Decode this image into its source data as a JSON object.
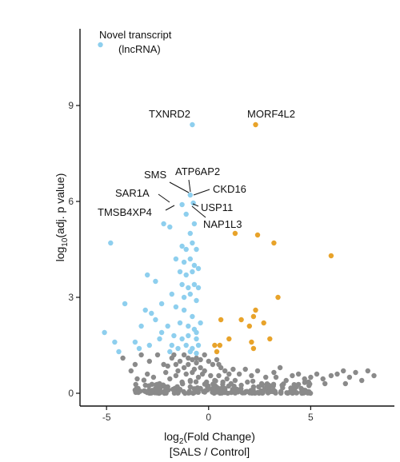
{
  "chart_data": {
    "type": "scatter",
    "xlabel": "log2(Fold Change)",
    "xlabel_base": "log",
    "xlabel_sub": "2",
    "xlabel_rest": "(Fold Change)",
    "xlabel_line2": "[SALS / Control]",
    "ylabel_base": "log",
    "ylabel_sub": "10",
    "ylabel_rest": "(adj. p value)",
    "xlim": [
      -6.3,
      9.1
    ],
    "ylim": [
      -0.4,
      11.4
    ],
    "x_ticks": [
      -5,
      0,
      5
    ],
    "y_ticks": [
      0,
      3,
      6,
      9
    ],
    "grid": false,
    "colors": {
      "down": "#8ecfee",
      "up": "#e8a32a",
      "ns": "#8a8a8a"
    },
    "series": [
      {
        "key": "down",
        "points": [
          [
            -5.3,
            10.9
          ],
          [
            -0.8,
            8.4
          ],
          [
            -0.9,
            6.2
          ],
          [
            -1.3,
            5.9
          ],
          [
            -0.75,
            5.95
          ],
          [
            -4.8,
            4.7
          ],
          [
            -1.1,
            5.6
          ],
          [
            -2.2,
            5.3
          ],
          [
            -1.9,
            5.2
          ],
          [
            -0.9,
            5.0
          ],
          [
            -0.7,
            5.3
          ],
          [
            -1.3,
            4.6
          ],
          [
            -1.1,
            4.5
          ],
          [
            -0.8,
            4.7
          ],
          [
            -0.6,
            4.5
          ],
          [
            -1.6,
            4.2
          ],
          [
            -1.2,
            4.1
          ],
          [
            -0.9,
            4.2
          ],
          [
            -0.7,
            4.0
          ],
          [
            -1.4,
            3.8
          ],
          [
            -1.1,
            3.7
          ],
          [
            -0.8,
            3.8
          ],
          [
            -0.5,
            3.9
          ],
          [
            -1.3,
            3.4
          ],
          [
            -1.0,
            3.3
          ],
          [
            -0.7,
            3.4
          ],
          [
            -0.5,
            3.3
          ],
          [
            -1.8,
            3.1
          ],
          [
            -1.2,
            3.0
          ],
          [
            -0.9,
            3.1
          ],
          [
            -0.6,
            2.9
          ],
          [
            -4.1,
            2.8
          ],
          [
            -3.1,
            2.6
          ],
          [
            -2.8,
            2.5
          ],
          [
            -1.6,
            2.7
          ],
          [
            -1.2,
            2.6
          ],
          [
            -0.8,
            2.4
          ],
          [
            -2.6,
            2.3
          ],
          [
            -2.0,
            2.1
          ],
          [
            -1.4,
            2.2
          ],
          [
            -1.0,
            2.1
          ],
          [
            -0.7,
            2.0
          ],
          [
            -0.4,
            2.2
          ],
          [
            -3.3,
            2.1
          ],
          [
            -2.3,
            1.9
          ],
          [
            -1.7,
            1.8
          ],
          [
            -1.3,
            1.7
          ],
          [
            -1.0,
            1.8
          ],
          [
            -0.6,
            1.7
          ],
          [
            -5.1,
            1.9
          ],
          [
            -3.6,
            1.6
          ],
          [
            -2.9,
            1.5
          ],
          [
            -2.4,
            1.7
          ],
          [
            -1.8,
            1.5
          ],
          [
            -1.5,
            1.4
          ],
          [
            -1.1,
            1.5
          ],
          [
            -0.8,
            1.4
          ],
          [
            -0.5,
            1.5
          ],
          [
            -4.6,
            1.6
          ],
          [
            -3.4,
            1.4
          ],
          [
            -1.9,
            1.3
          ],
          [
            -0.9,
            1.3
          ],
          [
            -0.6,
            1.25
          ],
          [
            -3.0,
            3.7
          ],
          [
            -2.6,
            3.5
          ],
          [
            -4.4,
            1.3
          ],
          [
            -2.3,
            2.8
          ],
          [
            -0.6,
            1.9
          ]
        ]
      },
      {
        "key": "up",
        "points": [
          [
            2.3,
            8.4
          ],
          [
            6.0,
            4.3
          ],
          [
            1.3,
            5.0
          ],
          [
            2.4,
            4.95
          ],
          [
            3.2,
            4.7
          ],
          [
            3.4,
            3.0
          ],
          [
            2.3,
            2.6
          ],
          [
            2.2,
            2.4
          ],
          [
            1.6,
            2.3
          ],
          [
            0.6,
            2.3
          ],
          [
            2.0,
            2.1
          ],
          [
            2.7,
            2.2
          ],
          [
            1.0,
            1.7
          ],
          [
            3.0,
            1.7
          ],
          [
            2.1,
            1.6
          ],
          [
            0.3,
            1.5
          ],
          [
            0.55,
            1.5
          ],
          [
            2.2,
            1.4
          ],
          [
            0.4,
            1.3
          ]
        ]
      },
      {
        "key": "ns",
        "points": [
          [
            -4.2,
            1.1
          ],
          [
            -3.3,
            1.2
          ],
          [
            -2.9,
            1.0
          ],
          [
            -2.5,
            1.2
          ],
          [
            -2.2,
            0.9
          ],
          [
            -1.8,
            1.1
          ],
          [
            -1.6,
            0.9
          ],
          [
            -1.4,
            1.0
          ],
          [
            -1.2,
            0.8
          ],
          [
            -1.0,
            1.1
          ],
          [
            -0.8,
            1.05
          ],
          [
            -0.6,
            1.1
          ],
          [
            -0.4,
            0.8
          ],
          [
            -0.2,
            1.2
          ],
          [
            0.0,
            1.0
          ],
          [
            0.2,
            0.9
          ],
          [
            0.4,
            1.05
          ],
          [
            0.6,
            0.8
          ],
          [
            0.8,
            0.7
          ],
          [
            1.0,
            0.6
          ],
          [
            1.2,
            0.75
          ],
          [
            1.5,
            0.6
          ],
          [
            1.8,
            0.75
          ],
          [
            2.1,
            0.55
          ],
          [
            2.4,
            0.7
          ],
          [
            2.8,
            0.5
          ],
          [
            3.2,
            0.65
          ],
          [
            3.5,
            0.8
          ],
          [
            3.3,
            0.5
          ],
          [
            3.8,
            0.4
          ],
          [
            4.1,
            0.55
          ],
          [
            4.4,
            0.6
          ],
          [
            4.7,
            0.45
          ],
          [
            5.0,
            0.5
          ],
          [
            5.3,
            0.6
          ],
          [
            5.6,
            0.45
          ],
          [
            6.0,
            0.55
          ],
          [
            6.3,
            0.6
          ],
          [
            6.6,
            0.7
          ],
          [
            6.9,
            0.5
          ],
          [
            7.2,
            0.65
          ],
          [
            7.5,
            0.4
          ],
          [
            7.8,
            0.7
          ],
          [
            8.1,
            0.55
          ],
          [
            4.9,
            0.35
          ],
          [
            5.7,
            0.3
          ],
          [
            6.7,
            0.3
          ],
          [
            -3.8,
            0.7
          ],
          [
            -3.5,
            0.45
          ],
          [
            -3.0,
            0.6
          ],
          [
            -2.7,
            0.5
          ],
          [
            -2.4,
            0.3
          ],
          [
            -2.1,
            0.65
          ],
          [
            -1.9,
            0.45
          ],
          [
            -1.6,
            0.55
          ],
          [
            -1.3,
            0.35
          ],
          [
            -1.1,
            0.6
          ],
          [
            -0.9,
            0.4
          ],
          [
            -0.7,
            0.75
          ],
          [
            -0.5,
            0.5
          ],
          [
            -0.3,
            0.6
          ],
          [
            -0.1,
            0.35
          ],
          [
            0.1,
            0.55
          ],
          [
            0.3,
            0.4
          ],
          [
            0.5,
            0.55
          ],
          [
            0.7,
            0.35
          ],
          [
            0.9,
            0.45
          ],
          [
            1.1,
            0.3
          ],
          [
            1.3,
            0.4
          ],
          [
            1.6,
            0.25
          ],
          [
            1.9,
            0.35
          ],
          [
            2.2,
            0.2
          ],
          [
            2.6,
            0.3
          ],
          [
            3.0,
            0.2
          ],
          [
            3.6,
            0.25
          ],
          [
            4.3,
            0.2
          ],
          [
            -3.1,
            0.25
          ],
          [
            -2.6,
            0.15
          ],
          [
            -2.0,
            0.2
          ],
          [
            -1.5,
            0.15
          ],
          [
            -0.9,
            0.2
          ],
          [
            -0.4,
            0.15
          ],
          [
            0.2,
            0.15
          ],
          [
            0.8,
            0.12
          ],
          [
            -1.0,
            0.9
          ],
          [
            -0.8,
            0.65
          ],
          [
            -0.6,
            0.95
          ],
          [
            -1.2,
            1.2
          ],
          [
            -0.4,
            1.05
          ],
          [
            -1.5,
            0.7
          ],
          [
            -2.0,
            0.85
          ],
          [
            -1.7,
            1.2
          ],
          [
            0.5,
            0.9
          ],
          [
            -0.2,
            0.7
          ],
          [
            -3.6,
            0.9
          ]
        ]
      }
    ],
    "labels": [
      {
        "text": "Novel transcript",
        "x": -5.3,
        "y": 10.9
      },
      {
        "text": "(lncRNA)",
        "x": -5.3,
        "y": 10.9
      },
      {
        "text": "TXNRD2",
        "x": -0.8,
        "y": 8.4
      },
      {
        "text": "MORF4L2",
        "x": 2.3,
        "y": 8.4
      },
      {
        "text": "SMS",
        "x": -0.9,
        "y": 6.2
      },
      {
        "text": "ATP6AP2",
        "x": -0.9,
        "y": 6.2
      },
      {
        "text": "CKD16",
        "x": -0.75,
        "y": 6.2
      },
      {
        "text": "SAR1A",
        "x": -1.3,
        "y": 5.9
      },
      {
        "text": "TMSB4XP4",
        "x": -1.3,
        "y": 5.9
      },
      {
        "text": "USP11",
        "x": -0.75,
        "y": 5.95
      },
      {
        "text": "NAP1L3",
        "x": -0.75,
        "y": 5.95
      }
    ]
  }
}
